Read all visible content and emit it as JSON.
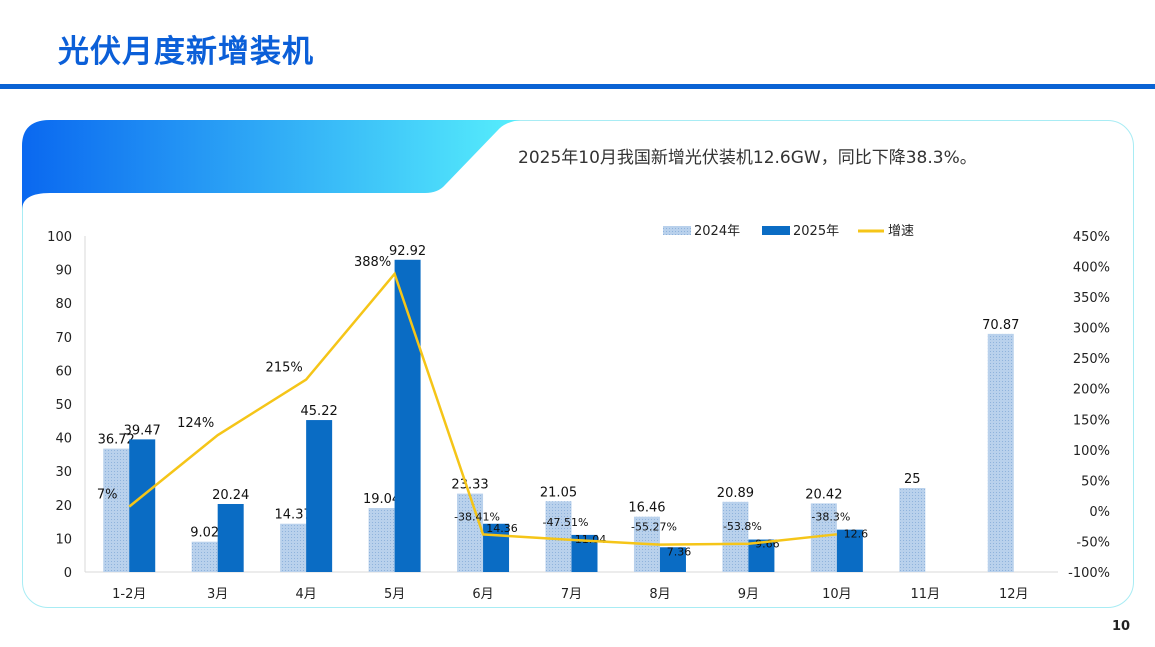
{
  "header": {
    "title": "光伏月度新增装机"
  },
  "headline": "2025年10月我国新增光伏装机12.6GW，同比下降38.3%。",
  "page_number": "10",
  "chart_data": {
    "type": "bar+line",
    "categories": [
      "1-2月",
      "3月",
      "4月",
      "5月",
      "6月",
      "7月",
      "8月",
      "9月",
      "10月",
      "11月",
      "12月"
    ],
    "series": [
      {
        "name": "2024年",
        "type": "bar",
        "color": "#a9c6e6",
        "values": [
          36.72,
          9.02,
          14.37,
          19.04,
          23.33,
          21.05,
          16.46,
          20.89,
          20.42,
          25,
          70.87
        ],
        "labels": [
          "36.72",
          "9.02",
          "14.37",
          "19.04",
          "23.33",
          "21.05",
          "16.46",
          "20.89",
          "20.42",
          "25",
          "70.87"
        ]
      },
      {
        "name": "2025年",
        "type": "bar",
        "color": "#0a6cc4",
        "values": [
          39.47,
          20.24,
          45.22,
          92.92,
          14.36,
          11.04,
          7.36,
          9.66,
          12.6,
          null,
          null
        ],
        "labels": [
          "39.47",
          "20.24",
          "45.22",
          "92.92",
          "14.36",
          "11.04",
          "7.36",
          "9.66",
          "12.6",
          "",
          ""
        ]
      },
      {
        "name": "增速",
        "type": "line",
        "axis": "right",
        "color": "#f5c518",
        "values": [
          7,
          124,
          215,
          388,
          -38.41,
          -47.51,
          -55.27,
          -53.8,
          -38.3,
          null,
          null
        ],
        "labels": [
          "7%",
          "124%",
          "215%",
          "388%",
          "-38.41%",
          "-47.51%",
          "-55.27%",
          "-53.8%",
          "-38.3%",
          "",
          ""
        ]
      }
    ],
    "y_left": {
      "range": [
        0,
        100
      ],
      "ticks": [
        "0",
        "10",
        "20",
        "30",
        "40",
        "50",
        "60",
        "70",
        "80",
        "90",
        "100"
      ]
    },
    "y_right": {
      "range": [
        -100,
        450
      ],
      "ticks": [
        "-100%",
        "-50%",
        "0%",
        "50%",
        "100%",
        "150%",
        "200%",
        "250%",
        "300%",
        "350%",
        "400%",
        "450%"
      ]
    },
    "legend": "top",
    "grid": false
  }
}
